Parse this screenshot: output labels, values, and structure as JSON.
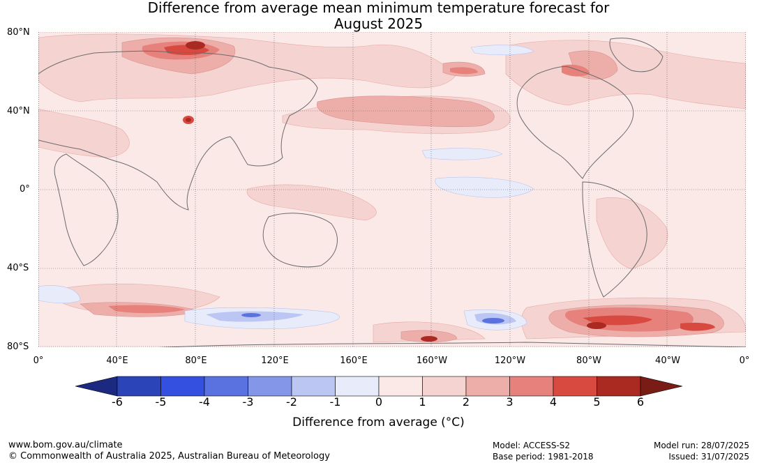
{
  "title_line1": "Difference from average mean minimum temperature forecast for",
  "title_line2": "August 2025",
  "latitude_labels": [
    "80°N",
    "40°N",
    "0°",
    "40°S",
    "80°S"
  ],
  "longitude_labels": [
    "0°",
    "40°E",
    "80°E",
    "120°E",
    "160°E",
    "160°W",
    "120°W",
    "80°W",
    "40°W",
    "0°"
  ],
  "colorbar": {
    "ticks": [
      "-6",
      "-5",
      "-4",
      "-3",
      "-2",
      "-1",
      "0",
      "1",
      "2",
      "3",
      "4",
      "5",
      "6"
    ],
    "colors": [
      "#1b2a80",
      "#2b44b8",
      "#3350e0",
      "#5a72e0",
      "#8496e8",
      "#bcc6f2",
      "#e8ecfa",
      "#fbe9e8",
      "#f5d3d1",
      "#edaeaa",
      "#e6817b",
      "#d84a40",
      "#aa2a22",
      "#7a1c16"
    ],
    "label": "Difference from average (°C)"
  },
  "footer": {
    "website": "www.bom.gov.au/climate",
    "copyright": "© Commonwealth of Australia 2025, Australian Bureau of Meteorology",
    "model": "Model: ACCESS-S2",
    "base_period": "Base period: 1981-2018",
    "model_run": "Model run: 28/07/2025",
    "issued": "Issued: 31/07/2025"
  }
}
